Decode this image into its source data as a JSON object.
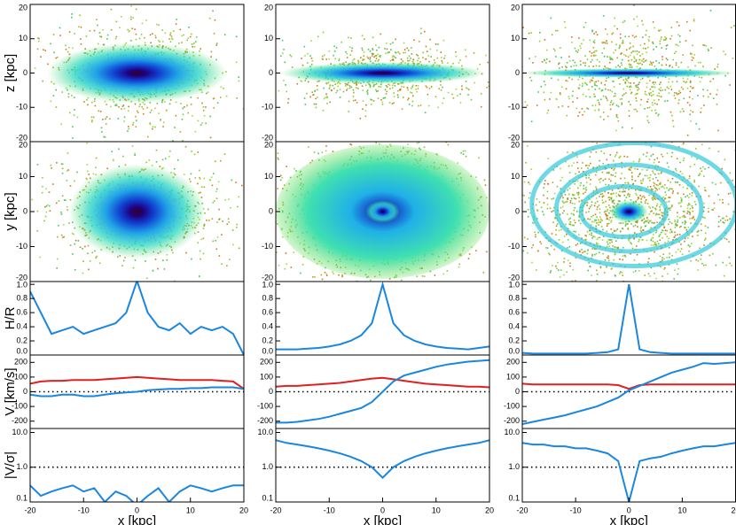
{
  "chart_data": [
    {
      "type": "map",
      "xlim": [
        -20,
        20
      ],
      "ylim": [
        -20,
        20
      ],
      "yticks": [
        -20,
        -10,
        0,
        10,
        20
      ],
      "ylabel": "z [kpc]"
    },
    {
      "type": "map",
      "xlim": [
        -20,
        20
      ],
      "ylim": [
        -20,
        20
      ],
      "yticks": [
        -20,
        -10,
        0,
        10,
        20
      ]
    },
    {
      "type": "map",
      "xlim": [
        -20,
        20
      ],
      "ylim": [
        -20,
        20
      ],
      "yticks": [
        -20,
        -10,
        0,
        10,
        20
      ]
    },
    {
      "type": "map",
      "xlim": [
        -20,
        20
      ],
      "ylim": [
        -20,
        20
      ],
      "yticks": [
        -20,
        -10,
        0,
        10,
        20
      ],
      "ylabel": "y [kpc]"
    },
    {
      "type": "map",
      "xlim": [
        -20,
        20
      ],
      "ylim": [
        -20,
        20
      ],
      "yticks": [
        -20,
        -10,
        0,
        10,
        20
      ]
    },
    {
      "type": "map",
      "xlim": [
        -20,
        20
      ],
      "ylim": [
        -20,
        20
      ],
      "yticks": [
        -20,
        -10,
        0,
        10,
        20
      ]
    },
    {
      "type": "line",
      "xlim": [
        -20,
        20
      ],
      "ylim": [
        0,
        1.04
      ],
      "yticks": [
        {
          "value": 0,
          "label": "0.0"
        },
        0.2,
        0.4,
        0.6,
        0.8,
        {
          "value": 1,
          "label": "1.0"
        }
      ],
      "ylabel": "H/R",
      "x": [
        -20,
        -18,
        -16,
        -14,
        -12,
        -10,
        -8,
        -6,
        -4,
        -2,
        0,
        2,
        4,
        6,
        8,
        10,
        12,
        14,
        16,
        18,
        20
      ],
      "series": [
        {
          "color": "#1a86e0",
          "values": [
            0.9,
            0.6,
            0.3,
            0.35,
            0.4,
            0.3,
            0.35,
            0.4,
            0.45,
            0.6,
            1.05,
            0.6,
            0.4,
            0.35,
            0.45,
            0.3,
            0.4,
            0.35,
            0.4,
            0.3,
            0.0
          ]
        }
      ]
    },
    {
      "type": "line",
      "xlim": [
        -20,
        20
      ],
      "ylim": [
        0,
        1.04
      ],
      "yticks": [
        {
          "value": 0,
          "label": "0.0"
        },
        0.2,
        0.4,
        0.6,
        0.8,
        {
          "value": 1,
          "label": "1.0"
        }
      ],
      "x": [
        -20,
        -18,
        -16,
        -14,
        -12,
        -10,
        -8,
        -6,
        -4,
        -2,
        0,
        2,
        4,
        6,
        8,
        10,
        12,
        14,
        16,
        18,
        20
      ],
      "series": [
        {
          "color": "#1a86e0",
          "values": [
            0.08,
            0.08,
            0.08,
            0.09,
            0.1,
            0.12,
            0.15,
            0.2,
            0.28,
            0.45,
            1.0,
            0.45,
            0.28,
            0.2,
            0.15,
            0.12,
            0.1,
            0.09,
            0.08,
            0.1,
            0.12
          ]
        }
      ]
    },
    {
      "type": "line",
      "xlim": [
        -20,
        20
      ],
      "ylim": [
        0,
        1.04
      ],
      "yticks": [
        {
          "value": 0,
          "label": "0.0"
        },
        0.2,
        0.4,
        0.6,
        0.8,
        {
          "value": 1,
          "label": "1.0"
        }
      ],
      "x": [
        -20,
        -18,
        -16,
        -14,
        -12,
        -10,
        -8,
        -6,
        -4,
        -2,
        0,
        2,
        4,
        6,
        8,
        10,
        12,
        14,
        16,
        18,
        20
      ],
      "series": [
        {
          "color": "#1a86e0",
          "values": [
            0.03,
            0.02,
            0.02,
            0.02,
            0.02,
            0.02,
            0.02,
            0.03,
            0.04,
            0.08,
            1.0,
            0.08,
            0.04,
            0.03,
            0.02,
            0.02,
            0.02,
            0.02,
            0.02,
            0.02,
            0.02
          ]
        }
      ]
    },
    {
      "type": "line",
      "xlim": [
        -20,
        20
      ],
      "ylim": [
        -250,
        250
      ],
      "yticks": [
        -200,
        -100,
        0,
        100,
        200
      ],
      "ylabel": "V [km/s]",
      "refline": 0,
      "x": [
        -20,
        -18,
        -16,
        -14,
        -12,
        -10,
        -8,
        -6,
        -4,
        -2,
        0,
        2,
        4,
        6,
        8,
        10,
        12,
        14,
        16,
        18,
        20
      ],
      "series": [
        {
          "color": "#e02020",
          "values": [
            55,
            70,
            75,
            75,
            80,
            80,
            80,
            85,
            90,
            95,
            100,
            95,
            90,
            85,
            80,
            80,
            80,
            80,
            75,
            70,
            20
          ]
        },
        {
          "color": "#1a86e0",
          "values": [
            -20,
            -30,
            -30,
            -20,
            -20,
            -30,
            -30,
            -20,
            -10,
            -5,
            0,
            10,
            15,
            20,
            20,
            25,
            25,
            30,
            30,
            30,
            20
          ]
        }
      ]
    },
    {
      "type": "line",
      "xlim": [
        -20,
        20
      ],
      "ylim": [
        -250,
        250
      ],
      "yticks": [
        -200,
        -100,
        0,
        100,
        200
      ],
      "refline": 0,
      "x": [
        -20,
        -18,
        -16,
        -14,
        -12,
        -10,
        -8,
        -6,
        -4,
        -2,
        0,
        2,
        4,
        6,
        8,
        10,
        12,
        14,
        16,
        18,
        20
      ],
      "series": [
        {
          "color": "#e02020",
          "values": [
            35,
            40,
            40,
            45,
            50,
            55,
            60,
            70,
            80,
            90,
            95,
            85,
            75,
            65,
            55,
            50,
            45,
            40,
            35,
            35,
            30
          ]
        },
        {
          "color": "#1a86e0",
          "values": [
            -210,
            -210,
            -205,
            -195,
            -185,
            -170,
            -150,
            -130,
            -110,
            -70,
            0,
            70,
            110,
            130,
            150,
            170,
            185,
            195,
            205,
            210,
            215
          ]
        }
      ]
    },
    {
      "type": "line",
      "xlim": [
        -20,
        20
      ],
      "ylim": [
        -250,
        250
      ],
      "yticks": [
        -200,
        -100,
        0,
        100,
        200
      ],
      "refline": 0,
      "x": [
        -20,
        -18,
        -16,
        -14,
        -12,
        -10,
        -8,
        -6,
        -4,
        -2,
        0,
        2,
        4,
        6,
        8,
        10,
        12,
        14,
        16,
        18,
        20
      ],
      "series": [
        {
          "color": "#e02020",
          "values": [
            55,
            50,
            50,
            50,
            50,
            50,
            50,
            50,
            50,
            45,
            20,
            45,
            50,
            50,
            50,
            50,
            50,
            50,
            50,
            50,
            50
          ]
        },
        {
          "color": "#1a86e0",
          "values": [
            -220,
            -205,
            -190,
            -175,
            -160,
            -140,
            -120,
            -100,
            -70,
            -40,
            10,
            40,
            70,
            100,
            130,
            150,
            170,
            195,
            190,
            195,
            200
          ]
        }
      ]
    },
    {
      "type": "line",
      "log": true,
      "xlim": [
        -20,
        20
      ],
      "ylim": [
        0.1,
        13
      ],
      "yticks": [
        0.1,
        {
          "value": 1,
          "label": "1.0"
        },
        {
          "value": 10,
          "label": "10.0"
        }
      ],
      "ylabel": "|V/σ|",
      "refline": 1,
      "xticks": [
        -20,
        -10,
        0,
        10,
        20
      ],
      "xlabel": "x  [kpc]",
      "x": [
        -20,
        -18,
        -16,
        -14,
        -12,
        -10,
        -8,
        -6,
        -4,
        -2,
        0,
        2,
        4,
        6,
        8,
        10,
        12,
        14,
        16,
        18,
        20
      ],
      "series": [
        {
          "color": "#1a86e0",
          "values": [
            0.3,
            0.15,
            0.2,
            0.25,
            0.3,
            0.2,
            0.25,
            0.1,
            0.2,
            0.15,
            0.08,
            0.15,
            0.25,
            0.1,
            0.2,
            0.3,
            0.25,
            0.2,
            0.25,
            0.3,
            0.3
          ]
        }
      ]
    },
    {
      "type": "line",
      "log": true,
      "xlim": [
        -20,
        20
      ],
      "ylim": [
        0.1,
        13
      ],
      "yticks": [
        0.1,
        {
          "value": 1,
          "label": "1.0"
        },
        {
          "value": 10,
          "label": "10.0"
        }
      ],
      "refline": 1,
      "xticks": [
        -20,
        -10,
        0,
        10,
        20
      ],
      "xlabel": "x  [kpc]",
      "x": [
        -20,
        -18,
        -16,
        -14,
        -12,
        -10,
        -8,
        -6,
        -4,
        -2,
        0,
        2,
        4,
        6,
        8,
        10,
        12,
        14,
        16,
        18,
        20
      ],
      "series": [
        {
          "color": "#1a86e0",
          "values": [
            6,
            5,
            4.5,
            4,
            3.5,
            3,
            2.5,
            2,
            1.5,
            1,
            0.5,
            1,
            1.5,
            2,
            2.5,
            3,
            3.5,
            4,
            4.5,
            5,
            6
          ]
        }
      ]
    },
    {
      "type": "line",
      "log": true,
      "xlim": [
        -20,
        20
      ],
      "ylim": [
        0.1,
        13
      ],
      "yticks": [
        0.1,
        {
          "value": 1,
          "label": "1.0"
        },
        {
          "value": 10,
          "label": "10.0"
        }
      ],
      "refline": 1,
      "xticks": [
        -20,
        -10,
        0,
        10,
        20
      ],
      "xlabel": "x  [kpc]",
      "x": [
        -20,
        -18,
        -16,
        -14,
        -12,
        -10,
        -8,
        -6,
        -4,
        -2,
        0,
        2,
        4,
        6,
        8,
        10,
        12,
        14,
        16,
        18,
        20
      ],
      "series": [
        {
          "color": "#1a86e0",
          "values": [
            5,
            4.5,
            4.5,
            4,
            4,
            3.5,
            3.5,
            3,
            2.5,
            1.5,
            0.1,
            1.5,
            1.8,
            2,
            2.5,
            3,
            3.5,
            4,
            4,
            4.5,
            5
          ]
        }
      ]
    }
  ]
}
